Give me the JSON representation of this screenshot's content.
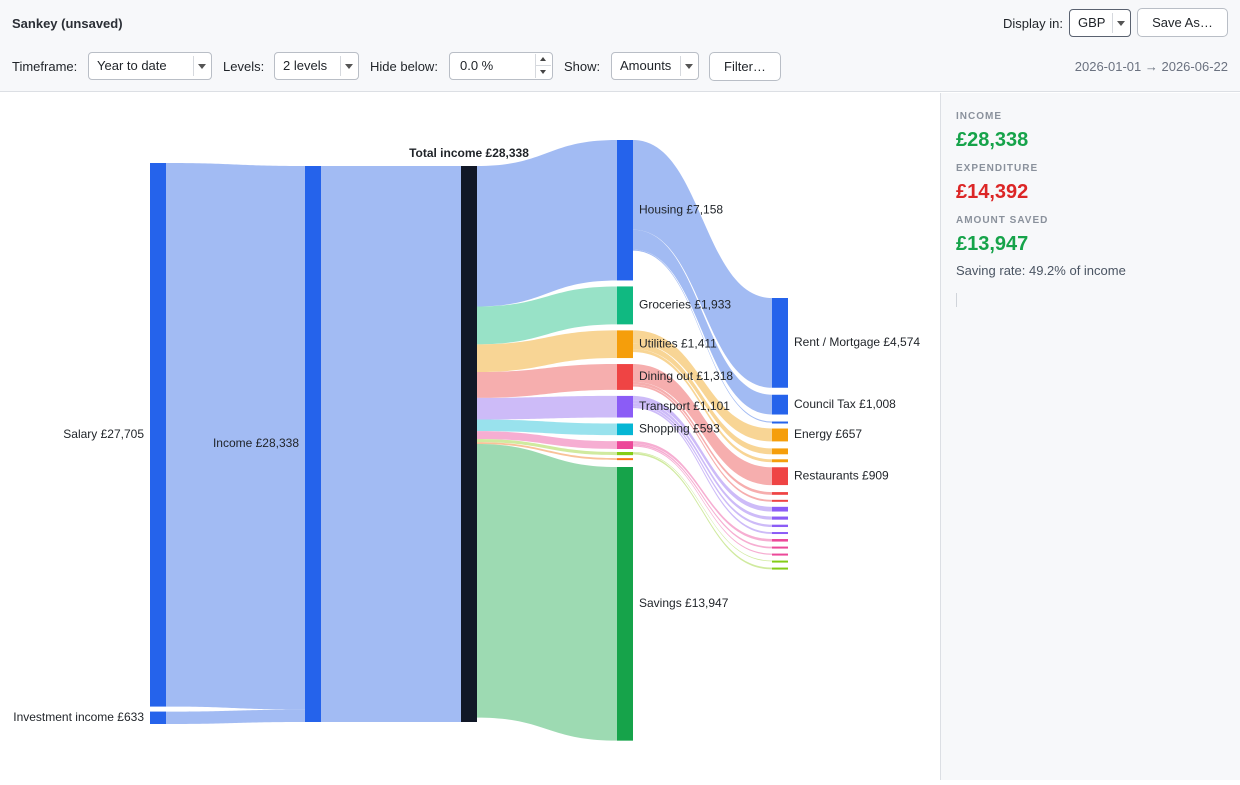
{
  "header": {
    "title": "Sankey (unsaved)",
    "display_in_label": "Display in:",
    "currency": "GBP",
    "save_as_label": "Save As…"
  },
  "controls": {
    "timeframe_label": "Timeframe:",
    "timeframe_value": "Year to date",
    "levels_label": "Levels:",
    "levels_value": "2 levels",
    "hide_below_label": "Hide below:",
    "hide_below_value": "0.0 %",
    "show_label": "Show:",
    "show_value": "Amounts",
    "filter_label": "Filter…",
    "date_range": "2026-01-01 → 2026-06-22"
  },
  "summary": {
    "income_label": "INCOME",
    "income_value": "£28,338",
    "expenditure_label": "EXPENDITURE",
    "expenditure_value": "£14,392",
    "saved_label": "AMOUNT SAVED",
    "saved_value": "£13,947",
    "saving_rate": "Saving rate: 49.2% of income",
    "colors": {
      "positive": "#16a34a",
      "negative": "#dc2626"
    }
  },
  "chart_data": {
    "type": "sankey",
    "currency_symbol": "£",
    "total_label": "Total income",
    "total": 28338,
    "sources": [
      {
        "name": "Salary",
        "value": 27705
      },
      {
        "name": "Investment income",
        "value": 633
      }
    ],
    "aggregate": {
      "name": "Income",
      "value": 28338
    },
    "categories": [
      {
        "name": "Housing",
        "value": 7158,
        "color": "#2563eb",
        "link_color": "#9db7f2"
      },
      {
        "name": "Groceries",
        "value": 1933,
        "color": "#10b981",
        "link_color": "#92e0c4"
      },
      {
        "name": "Utilities",
        "value": 1411,
        "color": "#f59e0b",
        "link_color": "#f8d38f"
      },
      {
        "name": "Dining out",
        "value": 1318,
        "color": "#ef4444",
        "link_color": "#f6aaaa"
      },
      {
        "name": "Transport",
        "value": 1101,
        "color": "#8b5cf6",
        "link_color": "#cab7f8"
      },
      {
        "name": "Shopping",
        "value": 593,
        "color": "#06b6d4",
        "link_color": "#93e0ec"
      },
      {
        "name": "",
        "value": 400,
        "color": "#ec4899",
        "link_color": "#f5aad0"
      },
      {
        "name": "",
        "value": 160,
        "color": "#84cc16",
        "link_color": "#cde99a"
      },
      {
        "name": "",
        "value": 95,
        "color": "#f97316",
        "link_color": "#f9bf94"
      },
      {
        "name": "Savings",
        "value": 13947,
        "color": "#16a34a",
        "link_color": "#98d8ae"
      }
    ],
    "subcategories": [
      {
        "name": "Rent / Mortgage",
        "value": 4574,
        "parent": 0
      },
      {
        "name": "Council Tax",
        "value": 1008,
        "parent": 0
      },
      {
        "name": "",
        "value": 60,
        "parent": 0
      },
      {
        "name": "Energy",
        "value": 657,
        "parent": 2
      },
      {
        "name": "",
        "value": 300,
        "parent": 2
      },
      {
        "name": "",
        "value": 150,
        "parent": 2
      },
      {
        "name": "Restaurants",
        "value": 909,
        "parent": 3
      },
      {
        "name": "",
        "value": 140,
        "parent": 3
      },
      {
        "name": "",
        "value": 100,
        "parent": 3
      },
      {
        "name": "",
        "value": 240,
        "parent": 4
      },
      {
        "name": "",
        "value": 160,
        "parent": 4
      },
      {
        "name": "",
        "value": 120,
        "parent": 4
      },
      {
        "name": "",
        "value": 100,
        "parent": 4
      },
      {
        "name": "",
        "value": 130,
        "parent": 6
      },
      {
        "name": "",
        "value": 90,
        "parent": 6
      },
      {
        "name": "",
        "value": 60,
        "parent": 6
      },
      {
        "name": "",
        "value": 40,
        "parent": 7
      },
      {
        "name": "",
        "value": 90,
        "parent": 7
      }
    ]
  }
}
